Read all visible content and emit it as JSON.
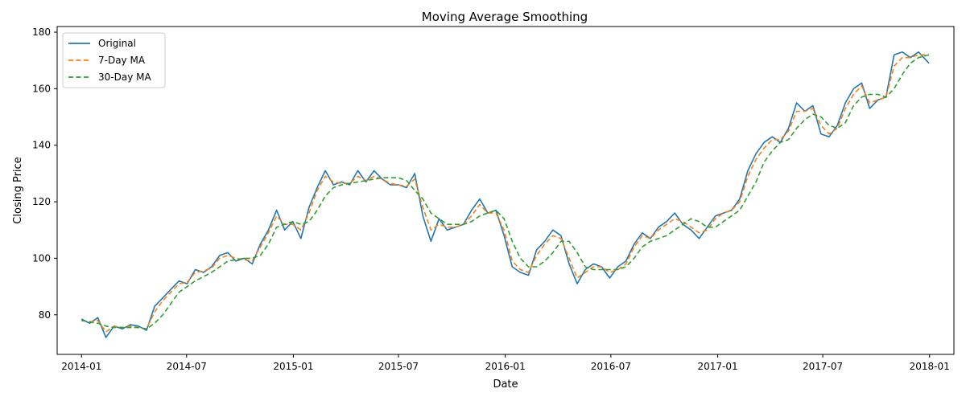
{
  "chart_data": {
    "type": "line",
    "title": "Moving Average Smoothing",
    "xlabel": "Date",
    "ylabel": "Closing Price",
    "xlim": [
      "2013-11-20",
      "2018-02-12"
    ],
    "ylim": [
      66,
      182
    ],
    "x_ticks": [
      "2014-01",
      "2014-07",
      "2015-01",
      "2015-07",
      "2016-01",
      "2016-07",
      "2017-01",
      "2017-07",
      "2018-01"
    ],
    "y_ticks": [
      80,
      100,
      120,
      140,
      160,
      180
    ],
    "grid": false,
    "legend": {
      "position": "top-left",
      "entries": [
        "Original",
        "7-Day MA",
        "30-Day MA"
      ]
    },
    "x": [
      "2014-01-01",
      "2014-01-15",
      "2014-01-29",
      "2014-02-12",
      "2014-02-26",
      "2014-03-12",
      "2014-03-26",
      "2014-04-09",
      "2014-04-23",
      "2014-05-07",
      "2014-05-21",
      "2014-06-04",
      "2014-06-18",
      "2014-07-02",
      "2014-07-16",
      "2014-07-30",
      "2014-08-13",
      "2014-08-27",
      "2014-09-10",
      "2014-09-24",
      "2014-10-08",
      "2014-10-22",
      "2014-11-05",
      "2014-11-19",
      "2014-12-03",
      "2014-12-17",
      "2014-12-31",
      "2015-01-14",
      "2015-01-28",
      "2015-02-11",
      "2015-02-25",
      "2015-03-11",
      "2015-03-25",
      "2015-04-08",
      "2015-04-22",
      "2015-05-06",
      "2015-05-20",
      "2015-06-03",
      "2015-06-17",
      "2015-07-01",
      "2015-07-15",
      "2015-07-29",
      "2015-08-12",
      "2015-08-26",
      "2015-09-09",
      "2015-09-23",
      "2015-10-07",
      "2015-10-21",
      "2015-11-04",
      "2015-11-18",
      "2015-12-02",
      "2015-12-16",
      "2015-12-30",
      "2016-01-13",
      "2016-01-27",
      "2016-02-10",
      "2016-02-24",
      "2016-03-09",
      "2016-03-23",
      "2016-04-06",
      "2016-04-20",
      "2016-05-04",
      "2016-05-18",
      "2016-06-01",
      "2016-06-15",
      "2016-06-29",
      "2016-07-13",
      "2016-07-27",
      "2016-08-10",
      "2016-08-24",
      "2016-09-07",
      "2016-09-21",
      "2016-10-05",
      "2016-10-19",
      "2016-11-02",
      "2016-11-16",
      "2016-11-30",
      "2016-12-14",
      "2016-12-28",
      "2017-01-11",
      "2017-01-25",
      "2017-02-08",
      "2017-02-22",
      "2017-03-08",
      "2017-03-22",
      "2017-04-05",
      "2017-04-19",
      "2017-05-03",
      "2017-05-17",
      "2017-05-31",
      "2017-06-14",
      "2017-06-28",
      "2017-07-12",
      "2017-07-26",
      "2017-08-09",
      "2017-08-23",
      "2017-09-06",
      "2017-09-20",
      "2017-10-04",
      "2017-10-18",
      "2017-11-01",
      "2017-11-15",
      "2017-11-29",
      "2017-12-13",
      "2017-12-31"
    ],
    "series": [
      {
        "name": "Original",
        "color": "#1f77b4",
        "dash": "solid",
        "values": [
          78.5,
          77,
          79,
          72,
          76,
          75,
          76.5,
          76,
          74.5,
          83,
          86,
          89,
          92,
          91,
          96,
          95,
          97,
          101,
          102,
          99,
          100,
          98,
          105,
          110,
          117,
          110,
          113,
          107,
          118,
          125,
          131,
          126,
          127,
          126,
          131,
          127,
          131,
          128,
          126,
          126,
          125,
          130,
          115,
          106,
          114,
          110,
          111,
          112,
          117,
          121,
          116,
          117,
          108,
          97,
          95,
          94,
          103,
          106,
          110,
          108,
          98,
          91,
          96,
          98,
          97,
          93,
          97,
          99,
          105,
          109,
          107,
          111,
          113,
          116,
          112,
          110,
          107,
          111,
          115,
          116,
          117,
          121,
          131,
          137,
          141,
          143,
          141,
          146,
          155,
          152,
          154,
          144,
          143,
          147,
          155,
          160,
          162,
          153,
          156,
          157,
          172,
          173,
          171,
          173,
          169
        ]
      },
      {
        "name": "7-Day MA",
        "color": "#ff7f0e",
        "dash": "dashed",
        "values": [
          78,
          77.5,
          78,
          74,
          76,
          75.5,
          76,
          75.5,
          75,
          81,
          85,
          88,
          91,
          91.5,
          95,
          95.5,
          96.5,
          100,
          101,
          100,
          99.5,
          99,
          104,
          109,
          115,
          112,
          112,
          110,
          116,
          124,
          129,
          127,
          126.5,
          126.5,
          129,
          127.5,
          129,
          128,
          126.5,
          126,
          125.5,
          128,
          118,
          110,
          112,
          111,
          111,
          112,
          115,
          119,
          116,
          116,
          110,
          99,
          96,
          95,
          101,
          105,
          108,
          107,
          100,
          93,
          95,
          97,
          97,
          95,
          96,
          98,
          104,
          108,
          107,
          110,
          112,
          114,
          113,
          111,
          109,
          110,
          114,
          116,
          117,
          120,
          129,
          135,
          139,
          142,
          142,
          145,
          152,
          152,
          153,
          147,
          144,
          146,
          153,
          158,
          161,
          155,
          156,
          157,
          168,
          171,
          171,
          172,
          172
        ]
      },
      {
        "name": "30-Day MA",
        "color": "#2ca02c",
        "dash": "dashed",
        "values": [
          78,
          77.5,
          77,
          76,
          75.5,
          75.5,
          75.5,
          75.5,
          75,
          77,
          80,
          84,
          88,
          90,
          92,
          93.5,
          95,
          97,
          99,
          99.5,
          100,
          100,
          101,
          105,
          111,
          112,
          113,
          112,
          113,
          117,
          122,
          125,
          126,
          126.5,
          127,
          127.5,
          128,
          128.5,
          128.5,
          128.5,
          127.5,
          124,
          121,
          116,
          114,
          112,
          112,
          112,
          113,
          115,
          116,
          117,
          114,
          106,
          100,
          97,
          97,
          99,
          102,
          106,
          106,
          102,
          97,
          96,
          96,
          96,
          96,
          97,
          100,
          104,
          106,
          107,
          108,
          110,
          112,
          114,
          113,
          111,
          111,
          113,
          115,
          117,
          122,
          127,
          134,
          138,
          141,
          142,
          146,
          149,
          151,
          150,
          147,
          146,
          148,
          154,
          157,
          158,
          158,
          157,
          160,
          165,
          169,
          171,
          172
        ]
      }
    ]
  }
}
